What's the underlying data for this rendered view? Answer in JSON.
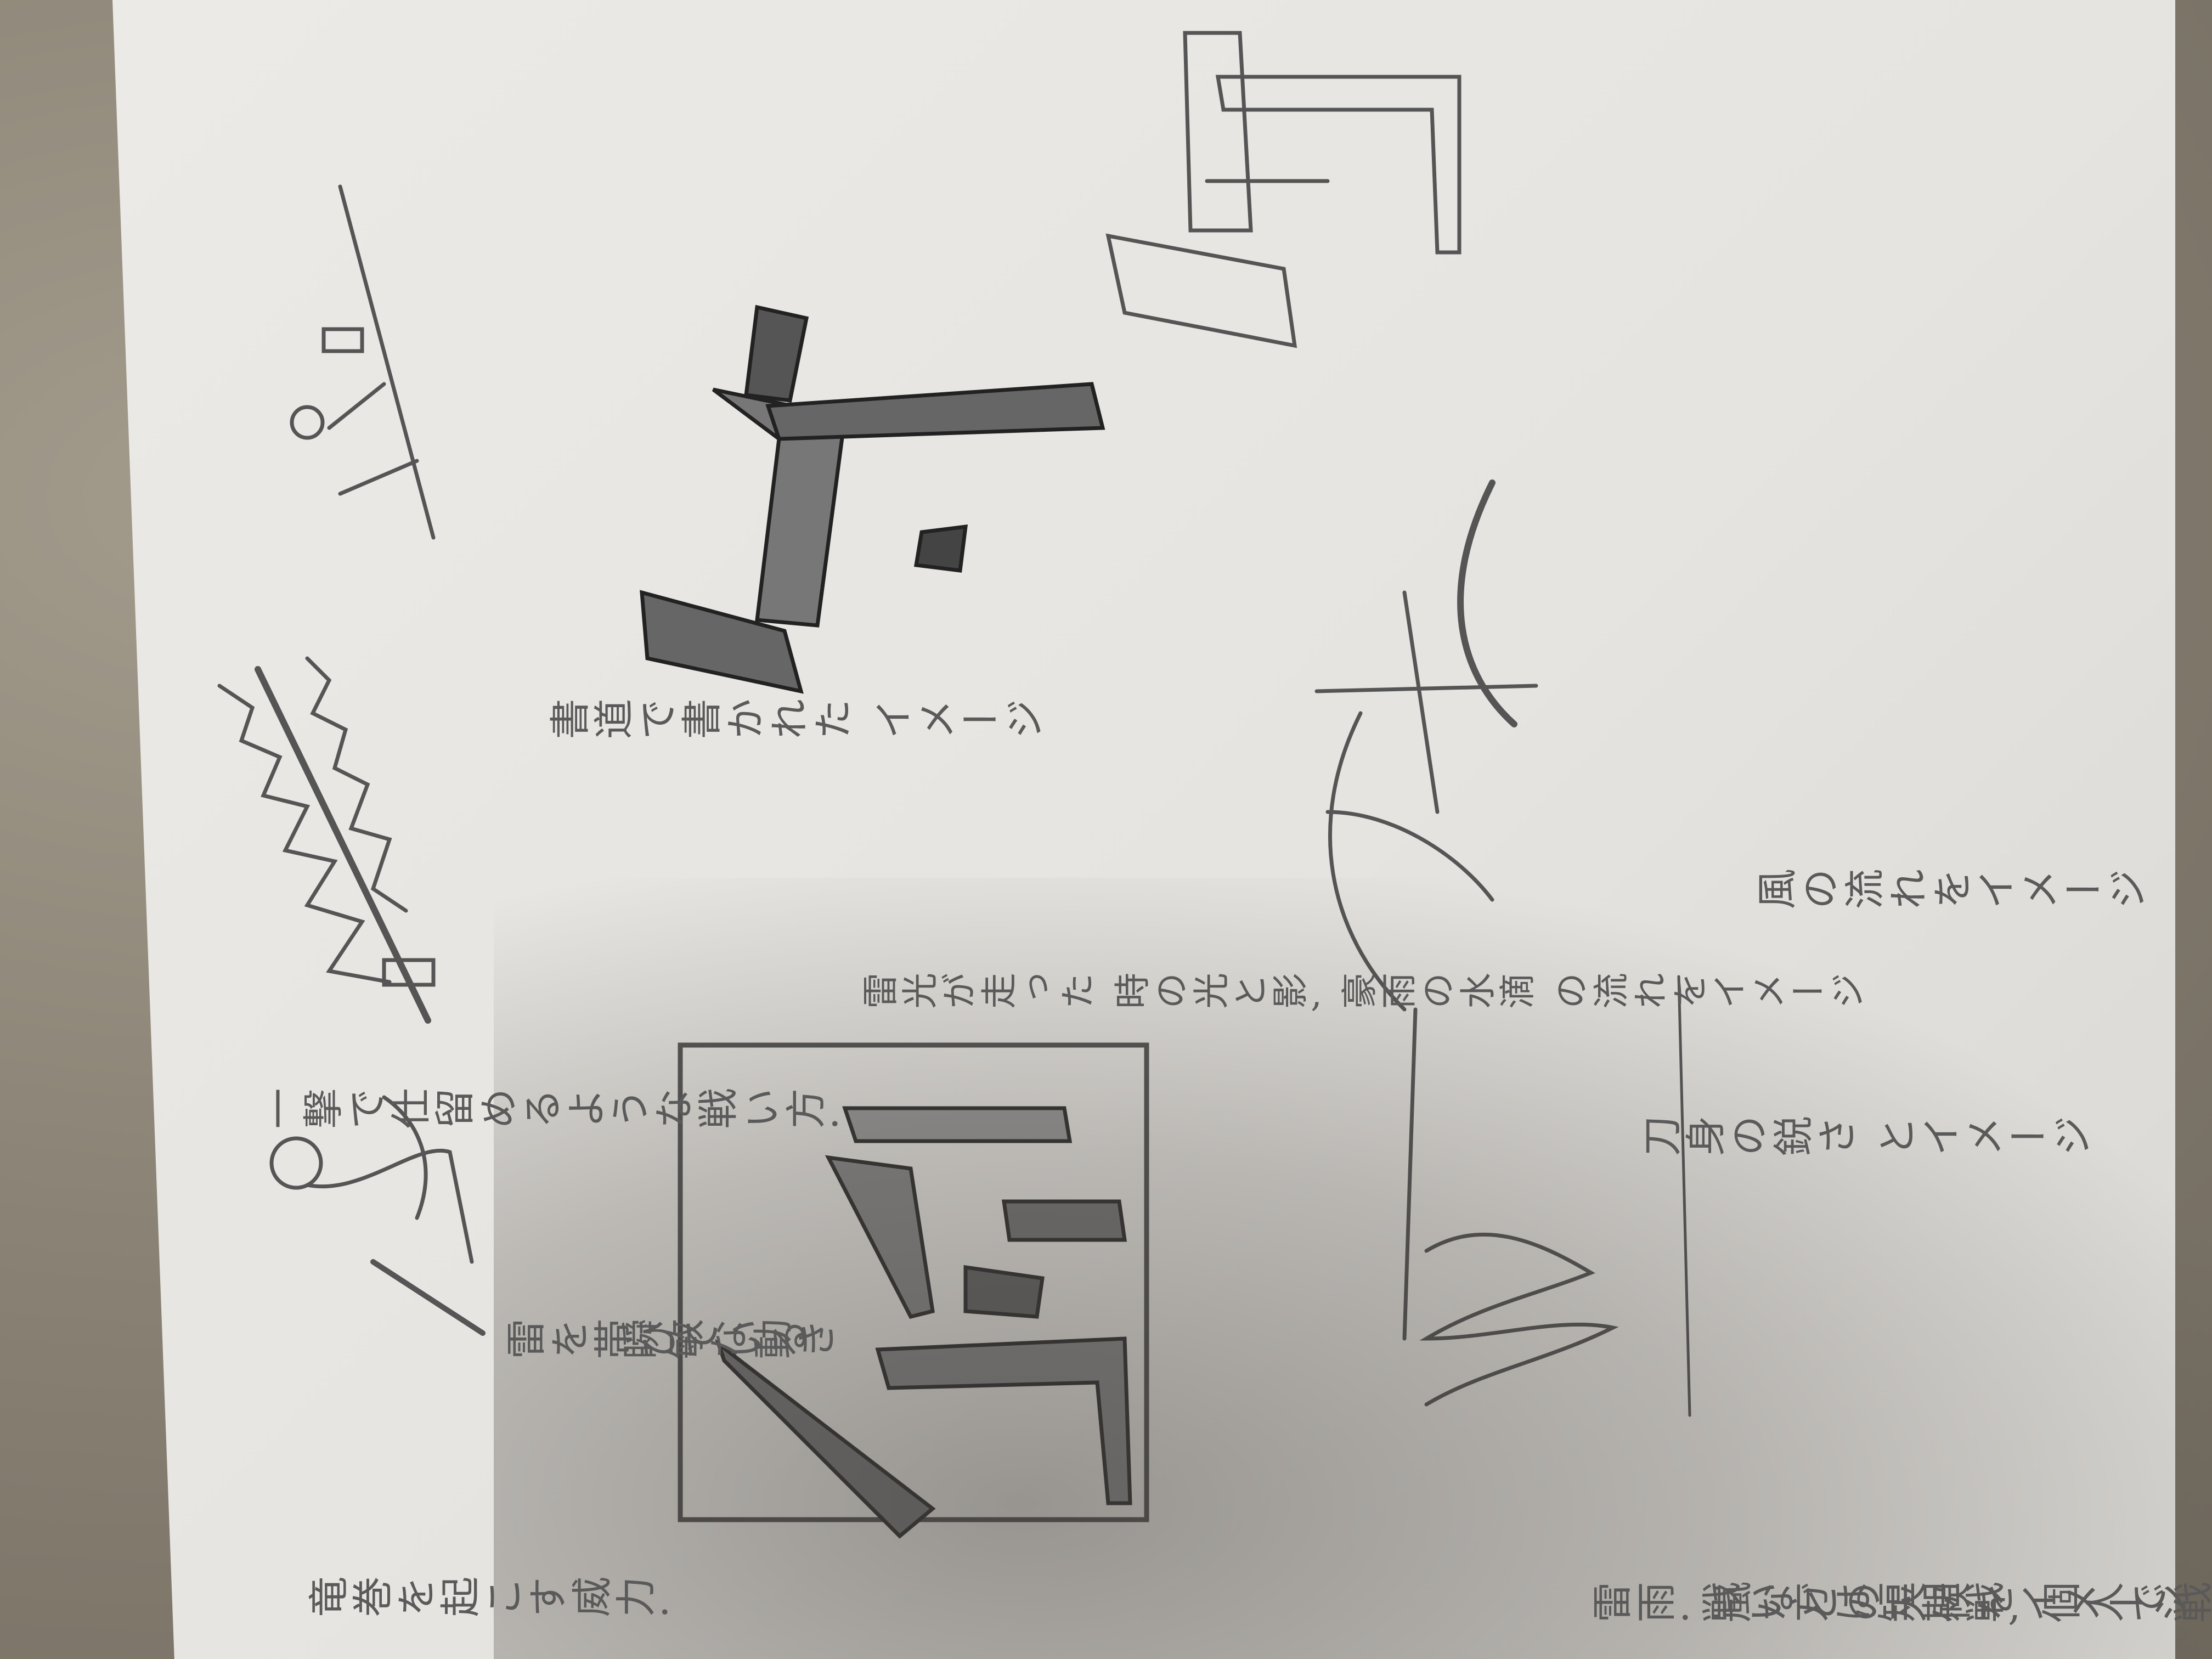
{
  "photo": {
    "subject": "pencil sketches of the kanji 侍 on paper",
    "notes": [
      "一撃で仕留めるような戦い方.",
      "書道で書かれた イメージ",
      "刀身の鋭さ とイメージ",
      "風の流れをイメージ",
      "雷を帯びている",
      "瞬敏な動き",
      "雷光が走った 時の光と影, 豪雨の水滴 の流れをイメージ",
      "竜巻を起こす威力.",
      "雷雨. 嵐などの天候をイメージ",
      "戦い方は短期戦, 個人で戦う."
    ],
    "colors": {
      "paper": "#e8e6e2",
      "carpet": "#8f8677",
      "pencil": "#555555"
    }
  }
}
